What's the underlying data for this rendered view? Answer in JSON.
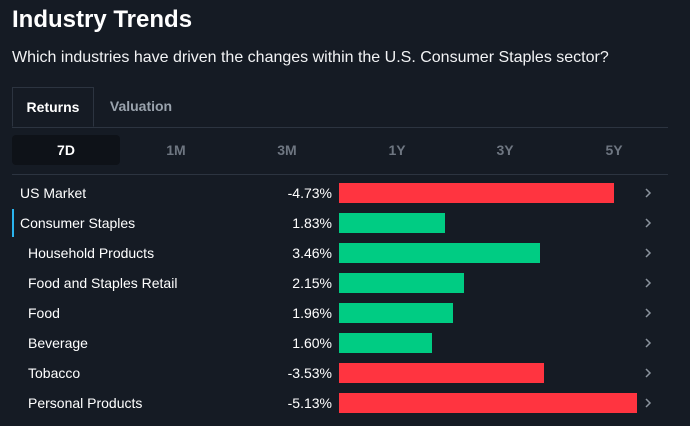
{
  "header": {
    "title": "Industry Trends",
    "subtitle": "Which industries have driven the changes within the U.S. Consumer Staples sector?"
  },
  "tabs": [
    {
      "label": "Returns",
      "active": true
    },
    {
      "label": "Valuation",
      "active": false
    }
  ],
  "periods": [
    {
      "label": "7D",
      "active": true
    },
    {
      "label": "1M",
      "active": false
    },
    {
      "label": "3M",
      "active": false
    },
    {
      "label": "1Y",
      "active": false
    },
    {
      "label": "3Y",
      "active": false
    },
    {
      "label": "5Y",
      "active": false
    }
  ],
  "colors": {
    "positive": "#00cc83",
    "negative": "#ff3440",
    "accent": "#2ab4ee"
  },
  "chart_data": {
    "type": "bar",
    "categories": [
      "US Market",
      "Consumer Staples",
      "Household Products",
      "Food and Staples Retail",
      "Food",
      "Beverage",
      "Tobacco",
      "Personal Products"
    ],
    "values": [
      -4.73,
      1.83,
      3.46,
      2.15,
      1.96,
      1.6,
      -3.53,
      -5.13
    ],
    "labels": [
      "-4.73%",
      "1.83%",
      "3.46%",
      "2.15%",
      "1.96%",
      "1.60%",
      "-3.53%",
      "-5.13%"
    ]
  },
  "rows": [
    {
      "label": "US Market",
      "value": -4.73,
      "pct": "-4.73%",
      "indent": false,
      "highlight": false
    },
    {
      "label": "Consumer Staples",
      "value": 1.83,
      "pct": "1.83%",
      "indent": false,
      "highlight": true
    },
    {
      "label": "Household Products",
      "value": 3.46,
      "pct": "3.46%",
      "indent": true,
      "highlight": false
    },
    {
      "label": "Food and Staples Retail",
      "value": 2.15,
      "pct": "2.15%",
      "indent": true,
      "highlight": false
    },
    {
      "label": "Food",
      "value": 1.96,
      "pct": "1.96%",
      "indent": true,
      "highlight": false
    },
    {
      "label": "Beverage",
      "value": 1.6,
      "pct": "1.60%",
      "indent": true,
      "highlight": false
    },
    {
      "label": "Tobacco",
      "value": -3.53,
      "pct": "-3.53%",
      "indent": true,
      "highlight": false
    },
    {
      "label": "Personal Products",
      "value": -5.13,
      "pct": "-5.13%",
      "indent": true,
      "highlight": false
    }
  ]
}
